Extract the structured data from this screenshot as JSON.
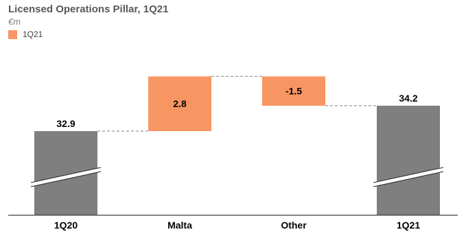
{
  "chart_data": {
    "type": "bar",
    "subtype": "waterfall",
    "title": "Licensed Operations Pillar, 1Q21",
    "unit": "€m",
    "legend": [
      {
        "label": "1Q21",
        "color": "#f79663"
      }
    ],
    "categories": [
      "1Q20",
      "Malta",
      "Other",
      "1Q21"
    ],
    "steps": [
      {
        "category": "1Q20",
        "kind": "total",
        "value": 32.9,
        "label": "32.9"
      },
      {
        "category": "Malta",
        "kind": "delta",
        "value": 2.8,
        "label": "2.8"
      },
      {
        "category": "Other",
        "kind": "delta",
        "value": -1.5,
        "label": "-1.5"
      },
      {
        "category": "1Q21",
        "kind": "total",
        "value": 34.2,
        "label": "34.2"
      }
    ],
    "axis_break": true,
    "colors": {
      "total": "#7f7f7f",
      "delta": "#f79663",
      "connector": "#7f7f7f",
      "axis": "#404040"
    }
  }
}
